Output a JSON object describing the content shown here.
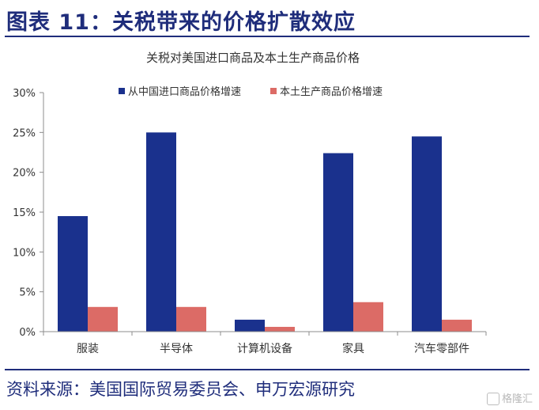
{
  "figure": {
    "title": "图表 11：关税带来的价格扩散效应",
    "source": "资料来源：美国国际贸易委员会、申万宏源研究",
    "watermark": "格隆汇"
  },
  "chart_data": {
    "type": "bar",
    "title": "关税对美国进口商品及本土生产商品价格",
    "categories": [
      "服装",
      "半导体",
      "计算机设备",
      "家具",
      "汽车零部件"
    ],
    "series": [
      {
        "name": "从中国进口商品价格增速",
        "values": [
          14.5,
          25.0,
          1.5,
          22.4,
          24.5
        ],
        "color": "#1a318d"
      },
      {
        "name": "本土生产商品价格增速",
        "values": [
          3.1,
          3.1,
          0.6,
          3.7,
          1.5
        ],
        "color": "#dc6b66"
      }
    ],
    "yticks": [
      "0%",
      "5%",
      "10%",
      "15%",
      "20%",
      "25%",
      "30%"
    ],
    "ylim": [
      0,
      30
    ],
    "legend_position": "top",
    "grid": false
  }
}
